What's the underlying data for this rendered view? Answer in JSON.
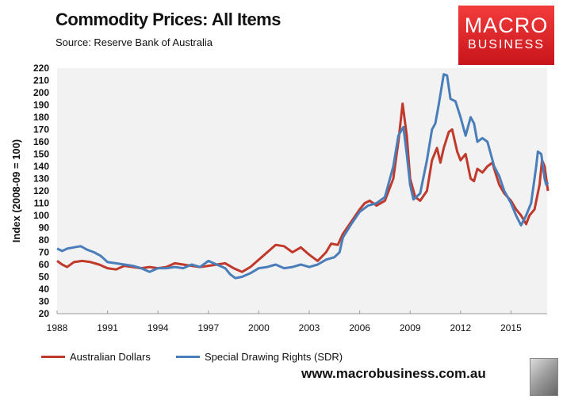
{
  "header": {
    "title": "Commodity Prices: All Items",
    "source": "Source:  Reserve Bank of Australia",
    "logo_line1": "MACRO",
    "logo_line2": "BUSINESS"
  },
  "footer": {
    "url": "www.macrobusiness.com.au"
  },
  "chart_data": {
    "type": "line",
    "title": "Commodity Prices: All Items",
    "xlabel": "",
    "ylabel": "Index (2008-09 = 100)",
    "ylim": [
      20,
      220
    ],
    "xlim": [
      1988,
      2017.2
    ],
    "yticks": [
      20,
      30,
      40,
      50,
      60,
      70,
      80,
      90,
      100,
      110,
      120,
      130,
      140,
      150,
      160,
      170,
      180,
      190,
      200,
      210,
      220
    ],
    "xticks": [
      "1988",
      "1991",
      "1994",
      "1997",
      "2000",
      "2003",
      "2006",
      "2009",
      "2012",
      "2015"
    ],
    "legend": "bottom",
    "series": [
      {
        "name": "Australian Dollars",
        "color": "#c0392b",
        "points": [
          [
            1988,
            63
          ],
          [
            1988.3,
            60
          ],
          [
            1988.6,
            58
          ],
          [
            1989,
            62
          ],
          [
            1989.5,
            63
          ],
          [
            1990,
            62
          ],
          [
            1990.5,
            60
          ],
          [
            1991,
            57
          ],
          [
            1991.5,
            56
          ],
          [
            1992,
            59
          ],
          [
            1992.5,
            58
          ],
          [
            1993,
            57
          ],
          [
            1993.5,
            58
          ],
          [
            1994,
            57
          ],
          [
            1994.5,
            58
          ],
          [
            1995,
            61
          ],
          [
            1995.5,
            60
          ],
          [
            1996,
            59
          ],
          [
            1996.5,
            58
          ],
          [
            1997,
            59
          ],
          [
            1997.5,
            60
          ],
          [
            1998,
            61
          ],
          [
            1998.5,
            57
          ],
          [
            1999,
            54
          ],
          [
            1999.5,
            58
          ],
          [
            2000,
            64
          ],
          [
            2000.5,
            70
          ],
          [
            2001,
            76
          ],
          [
            2001.5,
            75
          ],
          [
            2002,
            70
          ],
          [
            2002.5,
            74
          ],
          [
            2003,
            68
          ],
          [
            2003.5,
            63
          ],
          [
            2004,
            70
          ],
          [
            2004.3,
            77
          ],
          [
            2004.7,
            76
          ],
          [
            2005,
            85
          ],
          [
            2005.5,
            95
          ],
          [
            2006,
            105
          ],
          [
            2006.3,
            110
          ],
          [
            2006.6,
            112
          ],
          [
            2007,
            108
          ],
          [
            2007.5,
            112
          ],
          [
            2008,
            130
          ],
          [
            2008.3,
            160
          ],
          [
            2008.55,
            191
          ],
          [
            2008.8,
            165
          ],
          [
            2009,
            130
          ],
          [
            2009.3,
            115
          ],
          [
            2009.6,
            112
          ],
          [
            2010,
            120
          ],
          [
            2010.3,
            145
          ],
          [
            2010.6,
            155
          ],
          [
            2010.8,
            143
          ],
          [
            2011,
            155
          ],
          [
            2011.3,
            168
          ],
          [
            2011.5,
            170
          ],
          [
            2011.8,
            152
          ],
          [
            2012,
            145
          ],
          [
            2012.3,
            150
          ],
          [
            2012.6,
            130
          ],
          [
            2012.8,
            128
          ],
          [
            2013,
            138
          ],
          [
            2013.3,
            135
          ],
          [
            2013.6,
            140
          ],
          [
            2013.9,
            143
          ],
          [
            2014,
            138
          ],
          [
            2014.3,
            125
          ],
          [
            2014.6,
            118
          ],
          [
            2015,
            112
          ],
          [
            2015.3,
            105
          ],
          [
            2015.6,
            100
          ],
          [
            2015.9,
            93
          ],
          [
            2016.1,
            100
          ],
          [
            2016.4,
            105
          ],
          [
            2016.7,
            125
          ],
          [
            2016.85,
            145
          ],
          [
            2017,
            140
          ],
          [
            2017.1,
            130
          ],
          [
            2017.2,
            120
          ]
        ]
      },
      {
        "name": "Special Drawing Rights (SDR)",
        "color": "#4a7ebb",
        "points": [
          [
            1988,
            73
          ],
          [
            1988.3,
            71
          ],
          [
            1988.6,
            73
          ],
          [
            1989,
            74
          ],
          [
            1989.4,
            75
          ],
          [
            1989.8,
            72
          ],
          [
            1990.2,
            70
          ],
          [
            1990.6,
            67
          ],
          [
            1991,
            62
          ],
          [
            1991.5,
            61
          ],
          [
            1992,
            60
          ],
          [
            1992.5,
            59
          ],
          [
            1993,
            57
          ],
          [
            1993.5,
            54
          ],
          [
            1994,
            57
          ],
          [
            1994.5,
            57
          ],
          [
            1995,
            58
          ],
          [
            1995.5,
            57
          ],
          [
            1996,
            60
          ],
          [
            1996.5,
            58
          ],
          [
            1997,
            63
          ],
          [
            1997.5,
            60
          ],
          [
            1998,
            57
          ],
          [
            1998.3,
            52
          ],
          [
            1998.6,
            49
          ],
          [
            1999,
            50
          ],
          [
            1999.5,
            53
          ],
          [
            2000,
            57
          ],
          [
            2000.5,
            58
          ],
          [
            2001,
            60
          ],
          [
            2001.5,
            57
          ],
          [
            2002,
            58
          ],
          [
            2002.5,
            60
          ],
          [
            2003,
            58
          ],
          [
            2003.5,
            60
          ],
          [
            2004,
            64
          ],
          [
            2004.5,
            66
          ],
          [
            2004.8,
            70
          ],
          [
            2005,
            82
          ],
          [
            2005.5,
            93
          ],
          [
            2006,
            103
          ],
          [
            2006.5,
            108
          ],
          [
            2007,
            110
          ],
          [
            2007.5,
            115
          ],
          [
            2008,
            140
          ],
          [
            2008.3,
            165
          ],
          [
            2008.6,
            172
          ],
          [
            2008.8,
            150
          ],
          [
            2009,
            125
          ],
          [
            2009.2,
            113
          ],
          [
            2009.6,
            118
          ],
          [
            2010,
            145
          ],
          [
            2010.3,
            170
          ],
          [
            2010.5,
            175
          ],
          [
            2010.7,
            190
          ],
          [
            2011,
            215
          ],
          [
            2011.2,
            214
          ],
          [
            2011.4,
            195
          ],
          [
            2011.7,
            193
          ],
          [
            2012,
            180
          ],
          [
            2012.3,
            165
          ],
          [
            2012.6,
            180
          ],
          [
            2012.8,
            175
          ],
          [
            2013,
            160
          ],
          [
            2013.3,
            163
          ],
          [
            2013.6,
            160
          ],
          [
            2014,
            140
          ],
          [
            2014.3,
            132
          ],
          [
            2014.6,
            120
          ],
          [
            2015,
            110
          ],
          [
            2015.3,
            100
          ],
          [
            2015.6,
            92
          ],
          [
            2015.9,
            100
          ],
          [
            2016.2,
            110
          ],
          [
            2016.5,
            140
          ],
          [
            2016.6,
            152
          ],
          [
            2016.8,
            150
          ],
          [
            2017,
            130
          ],
          [
            2017.1,
            125
          ],
          [
            2017.2,
            127
          ]
        ]
      }
    ]
  }
}
